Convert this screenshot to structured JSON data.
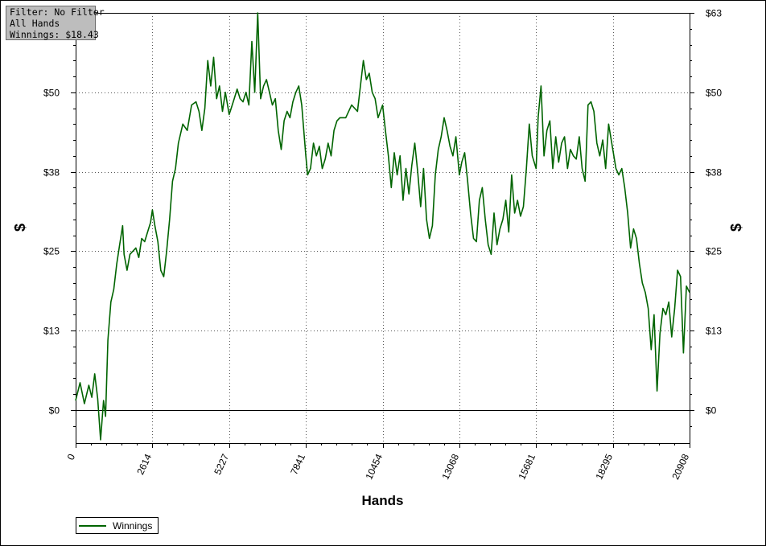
{
  "filter_box": {
    "line1": "Filter: No Filter",
    "line2": "All Hands",
    "line3": "Winnings: $18.43"
  },
  "chart_data": {
    "type": "line",
    "title": "",
    "xlabel": "Hands",
    "ylabel": "$",
    "x_ticks": [
      "0",
      "2614",
      "5227",
      "7841",
      "10454",
      "13068",
      "15681",
      "18295",
      "20908"
    ],
    "y_ticks": [
      {
        "value": 0,
        "label": "$0"
      },
      {
        "value": 12.5,
        "label": "$13"
      },
      {
        "value": 25,
        "label": "$25"
      },
      {
        "value": 37.5,
        "label": "$38"
      },
      {
        "value": 50,
        "label": "$50"
      },
      {
        "value": 62.5,
        "label": "$63"
      }
    ],
    "xlim": [
      0,
      20908
    ],
    "ylim": [
      -5.2,
      62.5
    ],
    "grid": true,
    "legend_position": "bottom-left",
    "series": [
      {
        "name": "Winnings",
        "color": "#006400",
        "x": [
          0,
          150,
          300,
          450,
          550,
          650,
          750,
          850,
          950,
          1020,
          1100,
          1200,
          1300,
          1400,
          1500,
          1600,
          1650,
          1750,
          1850,
          1950,
          2050,
          2150,
          2250,
          2350,
          2450,
          2550,
          2614,
          2700,
          2800,
          2900,
          3000,
          3100,
          3200,
          3300,
          3400,
          3500,
          3650,
          3800,
          3950,
          4100,
          4200,
          4300,
          4400,
          4500,
          4600,
          4700,
          4800,
          4900,
          5000,
          5100,
          5227,
          5300,
          5400,
          5500,
          5600,
          5700,
          5800,
          5900,
          6000,
          6100,
          6200,
          6300,
          6400,
          6500,
          6600,
          6700,
          6800,
          6900,
          7000,
          7100,
          7200,
          7300,
          7400,
          7500,
          7600,
          7700,
          7841,
          7900,
          8000,
          8100,
          8200,
          8300,
          8400,
          8500,
          8600,
          8700,
          8800,
          8900,
          9000,
          9200,
          9400,
          9600,
          9800,
          9900,
          10000,
          10100,
          10200,
          10300,
          10454,
          10550,
          10650,
          10750,
          10850,
          10950,
          11050,
          11150,
          11250,
          11350,
          11450,
          11550,
          11650,
          11750,
          11850,
          11950,
          12050,
          12150,
          12250,
          12350,
          12450,
          12550,
          12650,
          12750,
          12850,
          12950,
          13068,
          13150,
          13250,
          13350,
          13450,
          13550,
          13650,
          13750,
          13850,
          13950,
          14050,
          14150,
          14250,
          14350,
          14450,
          14550,
          14650,
          14750,
          14850,
          14950,
          15050,
          15150,
          15250,
          15350,
          15450,
          15550,
          15681,
          15750,
          15850,
          15950,
          16050,
          16150,
          16250,
          16350,
          16450,
          16550,
          16650,
          16750,
          16850,
          16950,
          17050,
          17150,
          17250,
          17350,
          17450,
          17550,
          17650,
          17750,
          17850,
          17950,
          18050,
          18150,
          18295,
          18400,
          18500,
          18600,
          18700,
          18800,
          18900,
          19000,
          19100,
          19200,
          19300,
          19400,
          19500,
          19600,
          19700,
          19800,
          19900,
          20000,
          20100,
          20200,
          20300,
          20400,
          20500,
          20600,
          20700,
          20800,
          20908
        ],
        "values": [
          1.5,
          4.3,
          1.0,
          3.9,
          2.0,
          5.7,
          1.8,
          -4.7,
          1.5,
          -1.0,
          11.0,
          17.0,
          19.0,
          23.0,
          26.0,
          29.0,
          24.5,
          22.0,
          24.5,
          25.0,
          25.5,
          24.0,
          27.0,
          26.5,
          28.0,
          29.5,
          31.5,
          29.0,
          26.5,
          22.0,
          21.0,
          25.0,
          30.0,
          36.0,
          38.0,
          42.0,
          45.0,
          44.0,
          48.0,
          48.5,
          47.0,
          44.0,
          47.5,
          55.0,
          51.0,
          55.5,
          49.0,
          51.0,
          47.0,
          50.0,
          46.5,
          47.5,
          49.0,
          50.5,
          49.0,
          48.5,
          50.0,
          48.0,
          58.0,
          50.0,
          62.5,
          49.0,
          51.0,
          52.0,
          50.0,
          48.0,
          49.0,
          44.0,
          41.0,
          45.5,
          47.0,
          46.0,
          48.5,
          50.0,
          51.0,
          48.0,
          40.0,
          37.0,
          38.0,
          42.0,
          40.0,
          41.5,
          38.0,
          39.5,
          42.0,
          40.0,
          44.0,
          45.5,
          46.0,
          46.0,
          48.0,
          47.0,
          55.0,
          52.0,
          53.0,
          50.0,
          49.0,
          46.0,
          48.0,
          44.0,
          40.0,
          35.0,
          40.5,
          37.0,
          40.0,
          33.0,
          38.0,
          34.0,
          38.5,
          42.0,
          37.5,
          32.0,
          38.0,
          30.0,
          27.0,
          29.0,
          37.0,
          41.0,
          43.0,
          46.0,
          44.0,
          41.5,
          40.0,
          43.0,
          37.0,
          39.0,
          40.5,
          36.0,
          31.0,
          27.0,
          26.5,
          33.0,
          35.0,
          30.0,
          26.0,
          24.5,
          31.0,
          26.0,
          28.5,
          30.0,
          33.0,
          28.0,
          37.0,
          31.0,
          33.0,
          30.5,
          32.0,
          38.0,
          45.0,
          40.0,
          38.0,
          46.0,
          51.0,
          40.0,
          44.0,
          45.5,
          38.0,
          43.0,
          39.0,
          42.0,
          43.0,
          38.0,
          41.0,
          40.0,
          39.5,
          43.0,
          38.0,
          36.0,
          48.0,
          48.5,
          47.0,
          42.0,
          40.0,
          42.5,
          38.0,
          45.0,
          41.0,
          38.0,
          37.0,
          38.0,
          35.0,
          31.0,
          25.5,
          28.5,
          27.0,
          23.0,
          20.0,
          18.5,
          16.0,
          9.5,
          15.0,
          3.0,
          12.0,
          16.0,
          15.0,
          17.0,
          11.5,
          16.0,
          22.0,
          21.0,
          9.0,
          19.5,
          18.5
        ]
      }
    ]
  },
  "legend": {
    "label": "Winnings",
    "color": "#006400"
  }
}
